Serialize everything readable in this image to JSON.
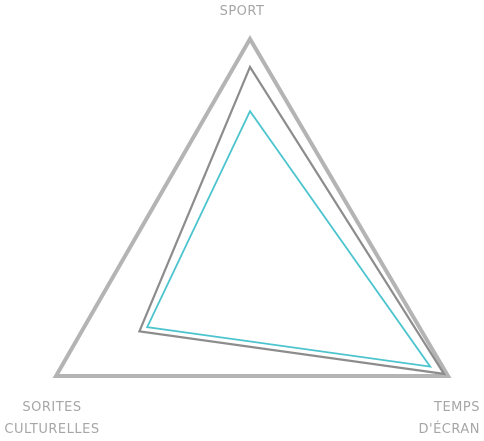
{
  "chart_data": {
    "type": "radar",
    "axes": [
      {
        "label_lines": [
          "SPORT"
        ]
      },
      {
        "label_lines": [
          "TEMPS",
          "D'ÉCRAN"
        ]
      },
      {
        "label_lines": [
          "SORITES",
          "CULTURELLES"
        ]
      }
    ],
    "range": [
      0,
      100
    ],
    "grid": false,
    "legend": "none",
    "series": [
      {
        "values": [
          100,
          100,
          100
        ],
        "color": "#b4b4b4"
      },
      {
        "values": [
          88,
          98,
          57
        ],
        "color": "#8c8c8c"
      },
      {
        "values": [
          69,
          91,
          53
        ],
        "color": "#4bc4ce"
      }
    ]
  }
}
